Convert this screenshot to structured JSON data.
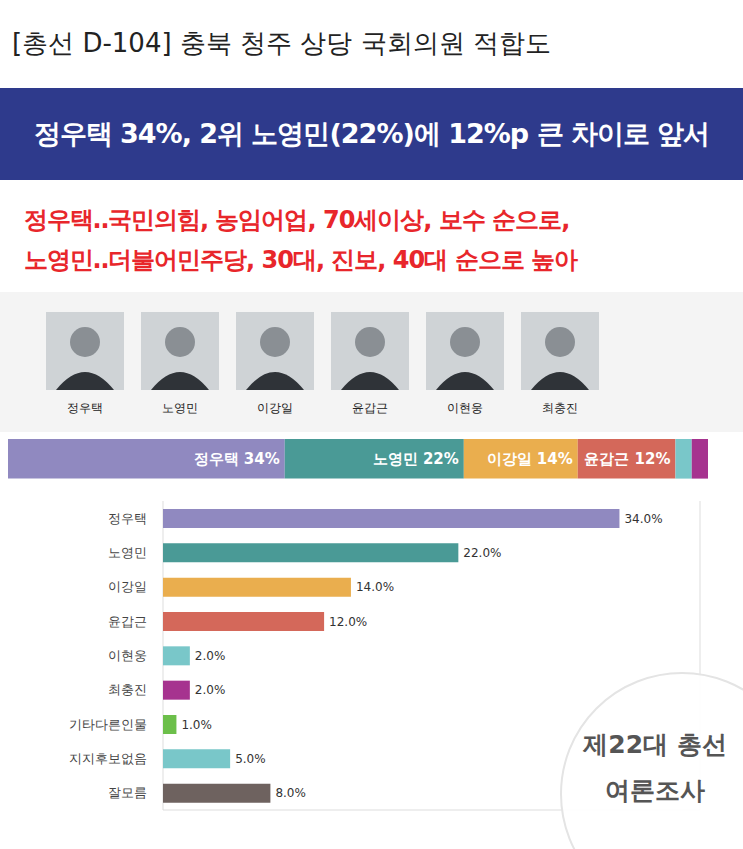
{
  "header": {
    "title": "[총선 D-104] 충북 청주 상당 국회의원 적합도",
    "banner": "정우택 34%, 2위 노영민(22%)에 12%p 큰 차이로 앞서",
    "subtitle": [
      "정우택‥국민의힘, 농임어업, 70세이상, 보수 순으로,",
      "노영민‥더불어민주당, 30대, 진보, 40대 순으로 높아"
    ]
  },
  "candidates": [
    "정우택",
    "노영민",
    "이강일",
    "윤갑근",
    "이현웅",
    "최충진"
  ],
  "badge": [
    "제22대 총선",
    "여론조사"
  ],
  "chart_data": [
    {
      "type": "bar",
      "orientation": "horizontal",
      "stacked": true,
      "data_labels": true,
      "tick_labels": false,
      "grid": false,
      "xlim": [
        0,
        86
      ],
      "xticks": [
        0,
        86
      ],
      "series": [
        {
          "name": "정우택",
          "color": "#9089c0",
          "values": [
            34
          ],
          "value_labels": [
            "정우택 34%"
          ]
        },
        {
          "name": "노영민",
          "color": "#4a9a96",
          "values": [
            22
          ],
          "value_labels": [
            "노영민 22%"
          ]
        },
        {
          "name": "이강일",
          "color": "#eaae4e",
          "values": [
            14
          ],
          "value_labels": [
            "이강일 14%"
          ]
        },
        {
          "name": "윤갑근",
          "color": "#d4685a",
          "values": [
            12
          ],
          "value_labels": [
            "윤갑근 12%"
          ]
        },
        {
          "name": "이현웅",
          "color": "#79c7c9",
          "values": [
            2
          ],
          "value_labels": [
            null
          ]
        },
        {
          "name": "최충진",
          "color": "#a6338f",
          "values": [
            2
          ],
          "value_labels": [
            null
          ]
        }
      ]
    },
    {
      "type": "bar",
      "orientation": "horizontal",
      "data_labels": true,
      "tick_labels": "y",
      "grid": true,
      "xlim": [
        0,
        40
      ],
      "xticks": [
        0,
        5,
        10,
        15,
        20,
        25,
        30,
        35,
        40
      ],
      "categories": [
        "정우택",
        "노영민",
        "이강일",
        "윤갑근",
        "이현웅",
        "최충진",
        "기타다른인물",
        "지지후보없음",
        "잘모름"
      ],
      "values": [
        34,
        22,
        14,
        12,
        2,
        2,
        1,
        5,
        8
      ],
      "value_labels": [
        "34.0%",
        "22.0%",
        "14.0%",
        "12.0%",
        "2.0%",
        "2.0%",
        "1.0%",
        "5.0%",
        "8.0%"
      ],
      "colors": [
        "#9089c0",
        "#4a9a96",
        "#eaae4e",
        "#d4685a",
        "#79c7c9",
        "#a6338f",
        "#6cbf4a",
        "#79c7c9",
        "#6e625f"
      ]
    }
  ]
}
